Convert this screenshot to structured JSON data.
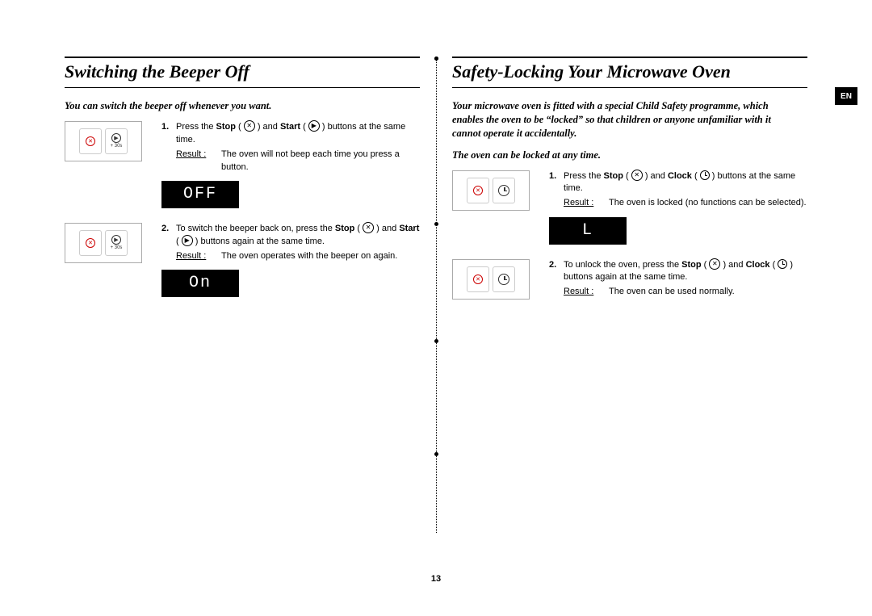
{
  "page_number": "13",
  "lang_tab": "EN",
  "left": {
    "title": "Switching the Beeper Off",
    "intro": "You can switch the beeper off whenever you want.",
    "steps": [
      {
        "num": "1.",
        "text_before": "Press the ",
        "text_bold1": "Stop",
        "text_mid": " ( ",
        "text_mid2": " ) and ",
        "text_bold2": "Start",
        "text_after": " ( ",
        "text_tail": " ) buttons at the same time.",
        "result_label": "Result :",
        "result_text": "The oven will not beep each time you press a button."
      },
      {
        "num": "2.",
        "text_before": "To switch the beeper back on, press the ",
        "text_bold1": "Stop",
        "text_mid": " ( ",
        "text_mid2": " ) and ",
        "text_bold2": "Start",
        "text_after": " ( ",
        "text_tail": " ) buttons again at the same time.",
        "result_label": "Result :",
        "result_text": "The oven operates with the beeper on again."
      }
    ],
    "display1": "OFF",
    "display2": "On",
    "thumb_btn2_label": "+ 30s"
  },
  "right": {
    "title": "Safety-Locking Your Microwave Oven",
    "intro1": "Your microwave oven is fitted with a special Child Safety programme, which enables the oven to be “locked” so that children or anyone unfamiliar with it cannot operate it accidentally.",
    "intro2": "The oven can be locked at any time.",
    "steps": [
      {
        "num": "1.",
        "text_before": "Press the ",
        "text_bold1": "Stop",
        "text_mid": " ( ",
        "text_mid2": " ) and ",
        "text_bold2": "Clock",
        "text_after": " ( ",
        "text_tail": " ) buttons at the same time.",
        "result_label": "Result :",
        "result_text": "The oven is locked (no functions can be selected)."
      },
      {
        "num": "2.",
        "text_before": "To unlock the oven, press the ",
        "text_bold1": "Stop",
        "text_mid": " ( ",
        "text_mid2": " ) and ",
        "text_bold2": "Clock",
        "text_after": " ( ",
        "text_tail": " ) buttons again at the same time.",
        "result_label": "Result :",
        "result_text": "The oven can be used normally."
      }
    ],
    "display1": "L"
  },
  "colors": {
    "text": "#000000",
    "accent_red": "#cc0000",
    "display_bg": "#000000",
    "display_fg": "#ffffff",
    "thumb_border": "#aaaaaa"
  }
}
